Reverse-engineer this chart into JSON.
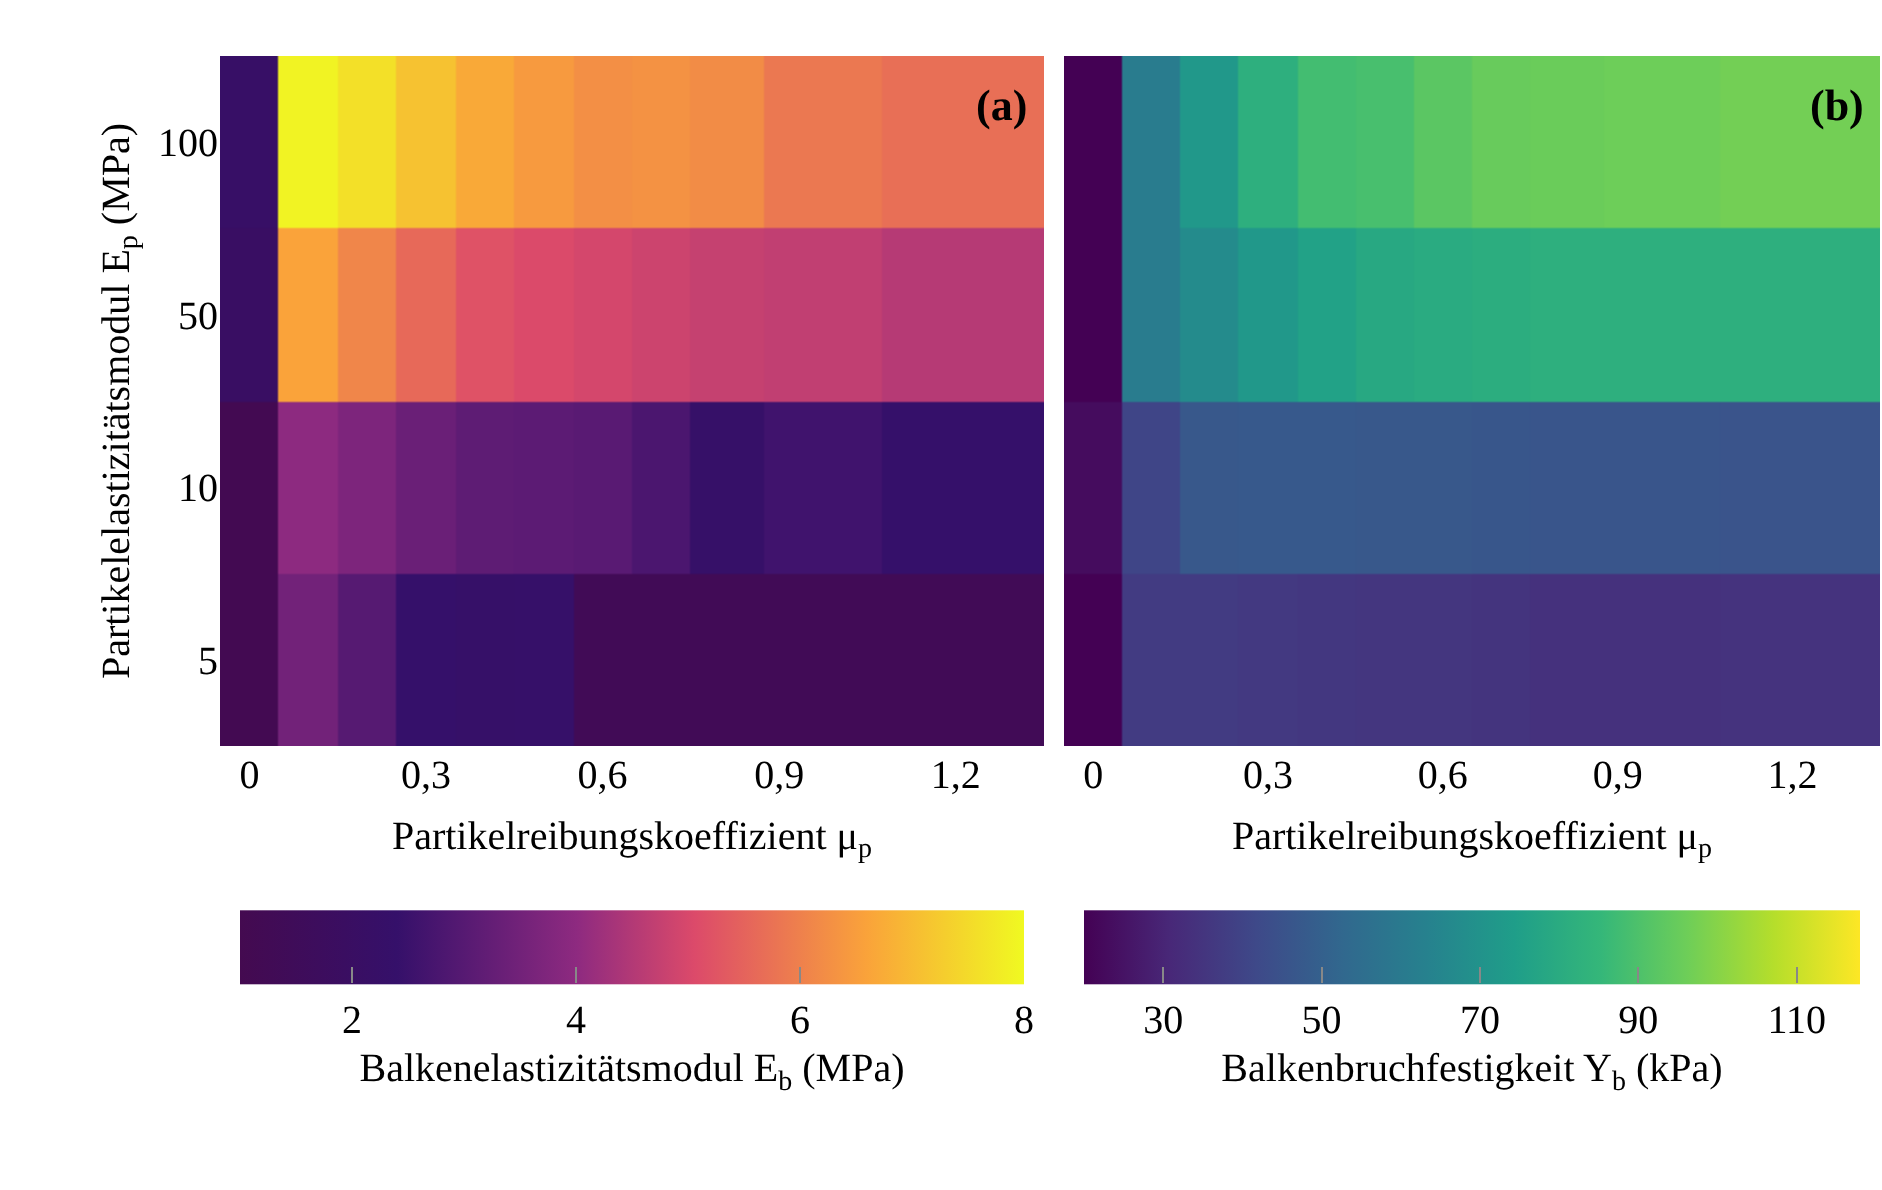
{
  "chart_data": [
    {
      "type": "heatmap",
      "xlabel": "Partikelreibungskoeffizient μ$_{p}$",
      "ylabel": "Partikelelastizitätsmodul E$_{p}$ (MPa)",
      "clabel": "Balkenelastizitätsmodul E$_{b}$ (MPa)",
      "annotations": [
        "(a)"
      ],
      "x": [
        0,
        0.1,
        0.2,
        0.3,
        0.4,
        0.5,
        0.6,
        0.7,
        0.8,
        0.95,
        1.2
      ],
      "xlim": [
        -0.05,
        1.35
      ],
      "xticks": [
        0,
        {
          "value": 0.3,
          "label": "0,3"
        },
        {
          "value": 0.6,
          "label": "0,6"
        },
        {
          "value": 0.9,
          "label": "0,9"
        },
        {
          "value": 1.2,
          "label": "1,2"
        }
      ],
      "y_categories": [
        "100",
        "50",
        "10",
        "5"
      ],
      "cells": [
        [
          2.2,
          7.9,
          7.6,
          7.1,
          6.7,
          6.45,
          6.25,
          6.3,
          6.2,
          5.85,
          5.7
        ],
        [
          2.0,
          6.6,
          6.1,
          5.6,
          5.2,
          5.05,
          4.95,
          4.85,
          4.75,
          4.7,
          4.55
        ],
        [
          1.1,
          4.0,
          3.7,
          3.35,
          3.15,
          3.1,
          3.05,
          2.8,
          2.3,
          2.6,
          2.4
        ],
        [
          1.1,
          3.5,
          3.0,
          2.4,
          2.3,
          2.35,
          1.3,
          1.3,
          1.3,
          1.3,
          1.3
        ]
      ],
      "clim": [
        1,
        8
      ],
      "cticks": [
        2,
        4,
        6,
        8
      ]
    },
    {
      "type": "heatmap",
      "xlabel": "Partikelreibungskoeffizient μ$_{p}$",
      "clabel": "Balkenbruchfestigkeit Y$_{b}$ (kPa)",
      "annotations": [
        "(b)"
      ],
      "tick_labels": "x",
      "x": [
        0,
        0.1,
        0.2,
        0.3,
        0.4,
        0.5,
        0.6,
        0.7,
        0.8,
        0.95,
        1.2
      ],
      "xlim": [
        -0.05,
        1.35
      ],
      "xticks": [
        0,
        {
          "value": 0.3,
          "label": "0,3"
        },
        {
          "value": 0.6,
          "label": "0,6"
        },
        {
          "value": 0.9,
          "label": "0,9"
        },
        {
          "value": 1.2,
          "label": "1,2"
        }
      ],
      "y_categories": [
        "100",
        "50",
        "10",
        "5"
      ],
      "cells": [
        [
          20,
          61,
          72,
          82,
          88,
          89,
          92.5,
          95,
          95.5,
          96,
          97
        ],
        [
          20,
          61,
          67,
          72,
          76,
          79,
          80,
          81,
          82,
          82,
          82
        ],
        [
          23,
          40.5,
          47,
          47.5,
          47.5,
          47,
          47,
          46.5,
          46,
          46,
          45.5
        ],
        [
          20,
          37,
          37,
          36.5,
          36,
          35.5,
          35.5,
          35,
          34,
          34,
          34.5
        ]
      ],
      "clim": [
        20,
        118
      ],
      "cticks": [
        30,
        50,
        70,
        90,
        110
      ]
    }
  ]
}
